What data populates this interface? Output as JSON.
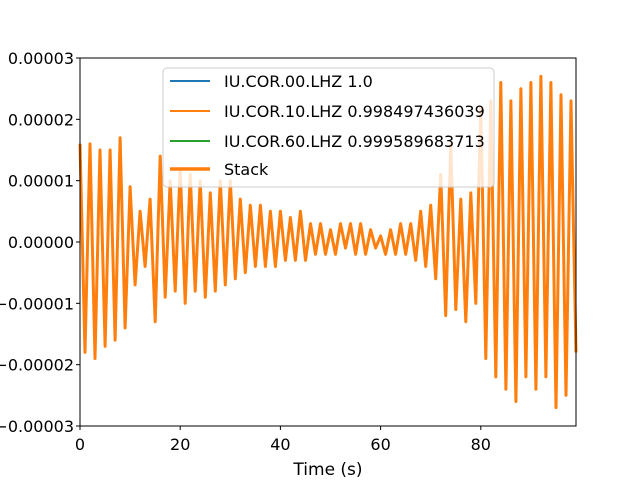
{
  "chart_data": {
    "type": "line",
    "title": "",
    "xlabel": "Time (s)",
    "ylabel": "",
    "xlim": [
      0,
      99
    ],
    "ylim": [
      -3e-05,
      3e-05
    ],
    "x_ticks": [
      0,
      20,
      40,
      60,
      80
    ],
    "x_tick_labels": [
      "0",
      "20",
      "40",
      "60",
      "80"
    ],
    "y_ticks": [
      -3e-05,
      -2e-05,
      -1e-05,
      0,
      1e-05,
      2e-05,
      3e-05
    ],
    "y_tick_labels": [
      "−0.00003",
      "−0.00002",
      "−0.00001",
      "0.00000",
      "0.00001",
      "0.00002",
      "0.00003"
    ],
    "legend_position": "top-center",
    "grid": false,
    "series": [
      {
        "name": "IU.COR.00.LHZ  1.0",
        "color": "#1f77b4",
        "linewidth": 1.5
      },
      {
        "name": "IU.COR.10.LHZ  0.998497436039",
        "color": "#ff7f0e",
        "linewidth": 1.5
      },
      {
        "name": "IU.COR.60.LHZ  0.999589683713",
        "color": "#2ca02c",
        "linewidth": 1.5
      },
      {
        "name": "Stack",
        "color": "#ff7f0e",
        "linewidth": 3
      }
    ],
    "waveform_samples": {
      "x": [
        0,
        1,
        2,
        3,
        4,
        5,
        6,
        7,
        8,
        9,
        10,
        11,
        12,
        13,
        14,
        15,
        16,
        17,
        18,
        19,
        20,
        21,
        22,
        23,
        24,
        25,
        26,
        27,
        28,
        29,
        30,
        31,
        32,
        33,
        34,
        35,
        36,
        37,
        38,
        39,
        40,
        41,
        42,
        43,
        44,
        45,
        46,
        47,
        48,
        49,
        50,
        51,
        52,
        53,
        54,
        55,
        56,
        57,
        58,
        59,
        60,
        61,
        62,
        63,
        64,
        65,
        66,
        67,
        68,
        69,
        70,
        71,
        72,
        73,
        74,
        75,
        76,
        77,
        78,
        79,
        80,
        81,
        82,
        83,
        84,
        85,
        86,
        87,
        88,
        89,
        90,
        91,
        92,
        93,
        94,
        95,
        96,
        97,
        98,
        99
      ],
      "y": [
        1.6e-05,
        -1.8e-05,
        1.6e-05,
        -1.9e-05,
        1.5e-05,
        -1.7e-05,
        1.5e-05,
        -1.6e-05,
        1.7e-05,
        -1.4e-05,
        9e-06,
        -7e-06,
        5e-06,
        -4e-06,
        7e-06,
        -1.3e-05,
        1.4e-05,
        -9e-06,
        1e-05,
        -8e-06,
        1.2e-05,
        -1e-05,
        1.1e-05,
        -8e-06,
        1e-05,
        -9e-06,
        8e-06,
        -8e-06,
        1e-05,
        -7e-06,
        1e-05,
        -6e-06,
        7e-06,
        -5e-06,
        6e-06,
        -4e-06,
        6e-06,
        -4e-06,
        5e-06,
        -4e-06,
        5e-06,
        -3e-06,
        4e-06,
        -3e-06,
        5e-06,
        -3e-06,
        3e-06,
        -2e-06,
        3e-06,
        -2e-06,
        2e-06,
        -2e-06,
        3e-06,
        -1e-06,
        3e-06,
        -2e-06,
        3e-06,
        -2e-06,
        2e-06,
        -1e-06,
        1e-06,
        -2e-06,
        2e-06,
        -2e-06,
        3e-06,
        -2e-06,
        3e-06,
        -3e-06,
        5e-06,
        -4e-06,
        6e-06,
        -6e-06,
        1.1e-05,
        -1.2e-05,
        1.6e-05,
        -1.1e-05,
        7e-06,
        -1.3e-05,
        8e-06,
        -1e-05,
        2.2e-05,
        -1.9e-05,
        2.3e-05,
        -2.2e-05,
        2.6e-05,
        -2.4e-05,
        2.3e-05,
        -2.6e-05,
        2.5e-05,
        -2.2e-05,
        2.6e-05,
        -2.4e-05,
        2.7e-05,
        -2.2e-05,
        2.6e-05,
        -2.7e-05,
        2.4e-05,
        -2.5e-05,
        2.3e-05,
        -1.8e-05
      ]
    }
  }
}
